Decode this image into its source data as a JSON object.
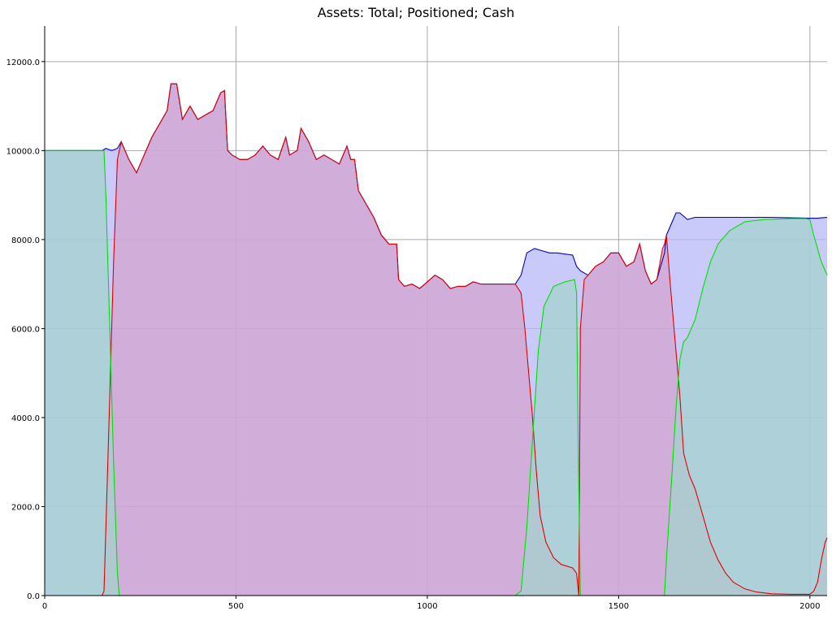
{
  "chart_data": {
    "type": "area",
    "title": "Assets: Total; Positioned; Cash",
    "xlabel": "",
    "ylabel": "",
    "xlim": [
      0,
      2045
    ],
    "ylim": [
      0,
      12800
    ],
    "grid": true,
    "x_ticks": [
      0,
      500,
      1000,
      1500,
      2000
    ],
    "x_tick_labels": [
      "0",
      "500",
      "1000",
      "1500",
      "2000"
    ],
    "y_ticks": [
      0,
      2000,
      4000,
      6000,
      8000,
      10000,
      12000
    ],
    "y_tick_labels": [
      "0.0",
      "2000.0",
      "4000.0",
      "6000.0",
      "8000.0",
      "10000.0",
      "12000.0"
    ],
    "series": [
      {
        "color": "#0000c0",
        "fill": "#b4b4f8",
        "points": [
          [
            0,
            10000
          ],
          [
            150,
            10000
          ],
          [
            160,
            10050
          ],
          [
            175,
            10000
          ],
          [
            190,
            10050
          ],
          [
            200,
            10200
          ],
          [
            220,
            9800
          ],
          [
            240,
            9500
          ],
          [
            260,
            9900
          ],
          [
            280,
            10300
          ],
          [
            300,
            10600
          ],
          [
            320,
            10900
          ],
          [
            330,
            11500
          ],
          [
            345,
            11500
          ],
          [
            360,
            10700
          ],
          [
            380,
            11000
          ],
          [
            400,
            10700
          ],
          [
            420,
            10800
          ],
          [
            440,
            10900
          ],
          [
            460,
            11300
          ],
          [
            470,
            11350
          ],
          [
            478,
            10000
          ],
          [
            490,
            9900
          ],
          [
            510,
            9800
          ],
          [
            530,
            9800
          ],
          [
            550,
            9900
          ],
          [
            570,
            10100
          ],
          [
            590,
            9900
          ],
          [
            610,
            9800
          ],
          [
            630,
            10300
          ],
          [
            640,
            9900
          ],
          [
            660,
            10000
          ],
          [
            670,
            10500
          ],
          [
            690,
            10200
          ],
          [
            710,
            9800
          ],
          [
            730,
            9900
          ],
          [
            750,
            9800
          ],
          [
            770,
            9700
          ],
          [
            790,
            10100
          ],
          [
            800,
            9800
          ],
          [
            810,
            9800
          ],
          [
            820,
            9100
          ],
          [
            840,
            8800
          ],
          [
            860,
            8500
          ],
          [
            880,
            8100
          ],
          [
            900,
            7900
          ],
          [
            920,
            7900
          ],
          [
            925,
            7100
          ],
          [
            940,
            6950
          ],
          [
            960,
            7000
          ],
          [
            980,
            6900
          ],
          [
            1000,
            7050
          ],
          [
            1020,
            7200
          ],
          [
            1040,
            7100
          ],
          [
            1060,
            6900
          ],
          [
            1080,
            6950
          ],
          [
            1100,
            6950
          ],
          [
            1120,
            7050
          ],
          [
            1140,
            7000
          ],
          [
            1160,
            7000
          ],
          [
            1180,
            7000
          ],
          [
            1200,
            7000
          ],
          [
            1230,
            7000
          ],
          [
            1245,
            7200
          ],
          [
            1260,
            7700
          ],
          [
            1280,
            7800
          ],
          [
            1300,
            7750
          ],
          [
            1320,
            7700
          ],
          [
            1340,
            7700
          ],
          [
            1380,
            7650
          ],
          [
            1390,
            7400
          ],
          [
            1400,
            7300
          ],
          [
            1420,
            7200
          ],
          [
            1440,
            7400
          ],
          [
            1460,
            7500
          ],
          [
            1480,
            7700
          ],
          [
            1500,
            7700
          ],
          [
            1520,
            7400
          ],
          [
            1540,
            7500
          ],
          [
            1555,
            7900
          ],
          [
            1570,
            7300
          ],
          [
            1585,
            7000
          ],
          [
            1600,
            7100
          ],
          [
            1620,
            7700
          ],
          [
            1625,
            8100
          ],
          [
            1640,
            8400
          ],
          [
            1650,
            8600
          ],
          [
            1660,
            8600
          ],
          [
            1680,
            8450
          ],
          [
            1700,
            8500
          ],
          [
            1750,
            8500
          ],
          [
            1800,
            8500
          ],
          [
            1900,
            8500
          ],
          [
            2000,
            8480
          ],
          [
            2020,
            8480
          ],
          [
            2045,
            8500
          ]
        ]
      },
      {
        "color": "#e00000",
        "fill": "#d4a4cc",
        "points": [
          [
            0,
            0
          ],
          [
            150,
            0
          ],
          [
            155,
            100
          ],
          [
            160,
            1500
          ],
          [
            170,
            4500
          ],
          [
            180,
            7500
          ],
          [
            190,
            9800
          ],
          [
            200,
            10200
          ],
          [
            220,
            9800
          ],
          [
            240,
            9500
          ],
          [
            260,
            9900
          ],
          [
            280,
            10300
          ],
          [
            300,
            10600
          ],
          [
            320,
            10900
          ],
          [
            330,
            11500
          ],
          [
            345,
            11500
          ],
          [
            360,
            10700
          ],
          [
            380,
            11000
          ],
          [
            400,
            10700
          ],
          [
            420,
            10800
          ],
          [
            440,
            10900
          ],
          [
            460,
            11300
          ],
          [
            470,
            11350
          ],
          [
            478,
            10000
          ],
          [
            490,
            9900
          ],
          [
            510,
            9800
          ],
          [
            530,
            9800
          ],
          [
            550,
            9900
          ],
          [
            570,
            10100
          ],
          [
            590,
            9900
          ],
          [
            610,
            9800
          ],
          [
            630,
            10300
          ],
          [
            640,
            9900
          ],
          [
            660,
            10000
          ],
          [
            670,
            10500
          ],
          [
            690,
            10200
          ],
          [
            710,
            9800
          ],
          [
            730,
            9900
          ],
          [
            750,
            9800
          ],
          [
            770,
            9700
          ],
          [
            790,
            10100
          ],
          [
            800,
            9800
          ],
          [
            810,
            9800
          ],
          [
            820,
            9100
          ],
          [
            840,
            8800
          ],
          [
            860,
            8500
          ],
          [
            880,
            8100
          ],
          [
            900,
            7900
          ],
          [
            920,
            7900
          ],
          [
            925,
            7100
          ],
          [
            940,
            6950
          ],
          [
            960,
            7000
          ],
          [
            980,
            6900
          ],
          [
            1000,
            7050
          ],
          [
            1020,
            7200
          ],
          [
            1040,
            7100
          ],
          [
            1060,
            6900
          ],
          [
            1080,
            6950
          ],
          [
            1100,
            6950
          ],
          [
            1120,
            7050
          ],
          [
            1140,
            7000
          ],
          [
            1160,
            7000
          ],
          [
            1180,
            7000
          ],
          [
            1200,
            7000
          ],
          [
            1230,
            7000
          ],
          [
            1245,
            6800
          ],
          [
            1255,
            6000
          ],
          [
            1265,
            5000
          ],
          [
            1275,
            4000
          ],
          [
            1285,
            2800
          ],
          [
            1295,
            1800
          ],
          [
            1310,
            1200
          ],
          [
            1330,
            850
          ],
          [
            1350,
            700
          ],
          [
            1380,
            620
          ],
          [
            1390,
            500
          ],
          [
            1396,
            0
          ],
          [
            1400,
            6000
          ],
          [
            1410,
            7100
          ],
          [
            1420,
            7200
          ],
          [
            1440,
            7400
          ],
          [
            1460,
            7500
          ],
          [
            1480,
            7700
          ],
          [
            1500,
            7700
          ],
          [
            1520,
            7400
          ],
          [
            1540,
            7500
          ],
          [
            1555,
            7900
          ],
          [
            1570,
            7300
          ],
          [
            1585,
            7000
          ],
          [
            1600,
            7100
          ],
          [
            1615,
            7800
          ],
          [
            1620,
            7900
          ],
          [
            1625,
            8100
          ],
          [
            1635,
            7000
          ],
          [
            1645,
            6000
          ],
          [
            1660,
            4500
          ],
          [
            1670,
            3200
          ],
          [
            1685,
            2700
          ],
          [
            1700,
            2400
          ],
          [
            1720,
            1800
          ],
          [
            1740,
            1200
          ],
          [
            1760,
            800
          ],
          [
            1780,
            500
          ],
          [
            1800,
            300
          ],
          [
            1830,
            150
          ],
          [
            1860,
            80
          ],
          [
            1900,
            40
          ],
          [
            1950,
            30
          ],
          [
            2000,
            30
          ],
          [
            2010,
            100
          ],
          [
            2020,
            300
          ],
          [
            2030,
            800
          ],
          [
            2040,
            1200
          ],
          [
            2045,
            1300
          ]
        ]
      },
      {
        "color": "#00e000",
        "fill": "#a4d4cc",
        "points": [
          [
            0,
            10000
          ],
          [
            155,
            10000
          ],
          [
            160,
            9000
          ],
          [
            170,
            6000
          ],
          [
            180,
            3000
          ],
          [
            190,
            500
          ],
          [
            195,
            0
          ],
          [
            1230,
            0
          ],
          [
            1245,
            100
          ],
          [
            1260,
            1500
          ],
          [
            1275,
            3500
          ],
          [
            1290,
            5500
          ],
          [
            1305,
            6500
          ],
          [
            1330,
            6950
          ],
          [
            1360,
            7050
          ],
          [
            1385,
            7100
          ],
          [
            1390,
            6800
          ],
          [
            1395,
            3000
          ],
          [
            1400,
            0
          ],
          [
            1620,
            0
          ],
          [
            1625,
            800
          ],
          [
            1640,
            2800
          ],
          [
            1650,
            4200
          ],
          [
            1660,
            5300
          ],
          [
            1670,
            5700
          ],
          [
            1680,
            5800
          ],
          [
            1700,
            6200
          ],
          [
            1720,
            6900
          ],
          [
            1740,
            7500
          ],
          [
            1760,
            7900
          ],
          [
            1790,
            8200
          ],
          [
            1830,
            8400
          ],
          [
            1880,
            8450
          ],
          [
            1950,
            8470
          ],
          [
            1990,
            8470
          ],
          [
            2000,
            8450
          ],
          [
            2010,
            8100
          ],
          [
            2030,
            7500
          ],
          [
            2045,
            7200
          ]
        ]
      }
    ]
  }
}
